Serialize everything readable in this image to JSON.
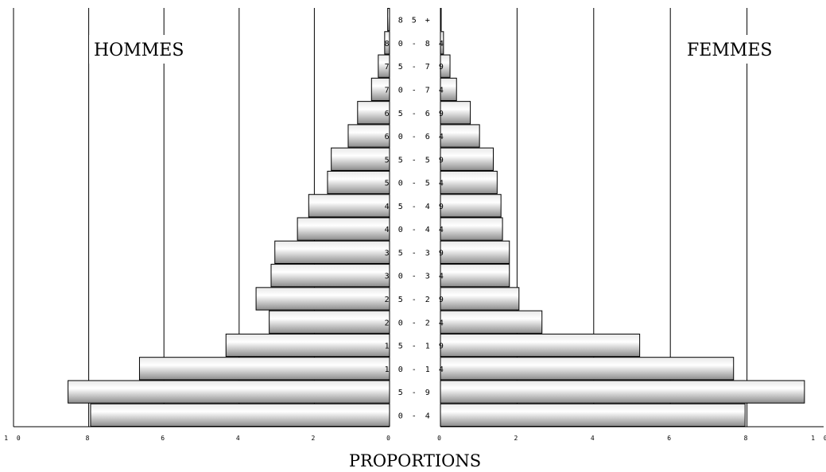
{
  "chart_data": {
    "type": "bar",
    "categories": [
      "0-4",
      "5-9",
      "10-14",
      "15-19",
      "20-24",
      "25-29",
      "30-34",
      "35-39",
      "40-44",
      "45-49",
      "50-54",
      "55-59",
      "60-64",
      "65-69",
      "70-74",
      "75-79",
      "80-84",
      "85+"
    ],
    "category_labels": [
      "0 - 4",
      "5 - 9",
      "1 0 - 1 4",
      "1 5 - 1 9",
      "2 0 - 2 4",
      "2 5 - 2 9",
      "3 0 - 3 4",
      "3 5 - 3 9",
      "4 0 - 4 4",
      "4 5 - 4 9",
      "5 0 - 5 4",
      "5 5 - 5 9",
      "6 0 - 6 4",
      "6 5 - 6 9",
      "7 0 - 7 4",
      "7 5 - 7 9",
      "8 0 - 8 4",
      "8 5 +"
    ],
    "series": [
      {
        "name": "HOMMES",
        "values": [
          7.95,
          8.55,
          6.65,
          4.35,
          3.2,
          3.55,
          3.15,
          3.05,
          2.45,
          2.15,
          1.65,
          1.55,
          1.1,
          0.85,
          0.48,
          0.3,
          0.13,
          0.05
        ]
      },
      {
        "name": "FEMMES",
        "values": [
          7.95,
          9.5,
          7.65,
          5.2,
          2.65,
          2.05,
          1.8,
          1.8,
          1.62,
          1.58,
          1.48,
          1.38,
          1.02,
          0.78,
          0.42,
          0.25,
          0.08,
          0.02
        ]
      }
    ],
    "panel_titles": {
      "left": "HOMMES",
      "right": "FEMMES"
    },
    "xlabel": "PROPORTIONS",
    "xlim": [
      0,
      10
    ],
    "left_ticks": [
      "1 0",
      "8",
      "6",
      "4",
      "2",
      "0"
    ],
    "right_ticks": [
      "0",
      "2",
      "4",
      "6",
      "8",
      "1 0"
    ],
    "grid": true,
    "colors": {
      "bar_edge": "#000000",
      "bar_light": "#ffffff",
      "bar_dark": "#8c8c8c",
      "grid": "#000000"
    }
  }
}
